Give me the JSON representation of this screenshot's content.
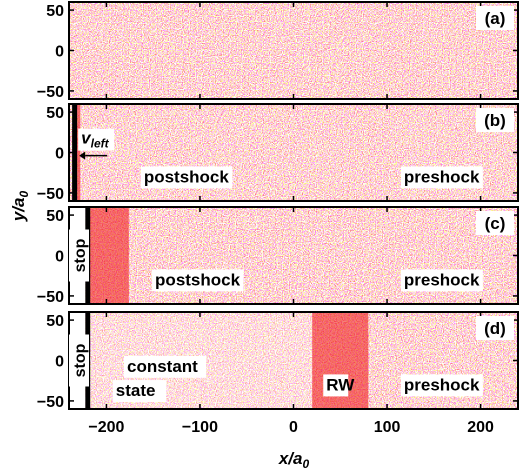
{
  "chart_data": [
    {
      "type": "scatter",
      "panel_label": "(a)",
      "xlim": [
        -240,
        240
      ],
      "ylim": [
        -60,
        60
      ],
      "yticks": [
        50,
        0,
        -50
      ],
      "point_color": "#ee1111",
      "annotations": [],
      "regions": [
        {
          "x_from": -240,
          "x_to": 240,
          "density": "uniform"
        }
      ]
    },
    {
      "type": "scatter",
      "panel_label": "(b)",
      "xlim": [
        -240,
        240
      ],
      "ylim": [
        -60,
        60
      ],
      "yticks": [
        50,
        0,
        -50
      ],
      "point_color": "#ee1111",
      "piston_x": -234,
      "annotations": [
        {
          "id": "vleft",
          "text": "v",
          "subscript": "left",
          "x": -227,
          "y": 11
        },
        {
          "id": "postshock",
          "text": "postshock",
          "x": -160,
          "y": -37
        },
        {
          "id": "preshock",
          "text": "preshock",
          "x": 118,
          "y": -37
        }
      ],
      "regions": [
        {
          "x_from": -234,
          "x_to": -228,
          "density": "high"
        },
        {
          "x_from": -228,
          "x_to": 240,
          "density": "uniform"
        }
      ]
    },
    {
      "type": "scatter",
      "panel_label": "(c)",
      "xlim": [
        -240,
        240
      ],
      "ylim": [
        -60,
        60
      ],
      "yticks": [
        50,
        0,
        -50
      ],
      "point_color": "#ee1111",
      "piston_x": -220,
      "annotations": [
        {
          "id": "stop",
          "text": "stop",
          "x": -230,
          "y": 0,
          "rotated": true
        },
        {
          "id": "postshock",
          "text": "postshock",
          "x": -148,
          "y": -37
        },
        {
          "id": "preshock",
          "text": "preshock",
          "x": 118,
          "y": -37
        }
      ],
      "regions": [
        {
          "x_from": -220,
          "x_to": -176,
          "density": "high"
        },
        {
          "x_from": -176,
          "x_to": 240,
          "density": "uniform"
        }
      ]
    },
    {
      "type": "scatter",
      "panel_label": "(d)",
      "xlim": [
        -240,
        240
      ],
      "ylim": [
        -60,
        60
      ],
      "yticks": [
        50,
        0,
        -50
      ],
      "xticks": [
        -200,
        -100,
        0,
        100,
        200
      ],
      "point_color": "#ee1111",
      "piston_x": -220,
      "annotations": [
        {
          "id": "stop",
          "text": "stop",
          "x": -230,
          "y": 0,
          "rotated": true
        },
        {
          "id": "constant",
          "text": "constant",
          "x": -178,
          "y": -14
        },
        {
          "id": "state",
          "text": "state",
          "x": -190,
          "y": -44
        },
        {
          "id": "rw",
          "text": "RW",
          "x": 35,
          "y": -37
        },
        {
          "id": "preshock",
          "text": "preshock",
          "x": 118,
          "y": -37
        }
      ],
      "regions": [
        {
          "x_from": -220,
          "x_to": 20,
          "density": "low"
        },
        {
          "x_from": 20,
          "x_to": 80,
          "density": "high"
        },
        {
          "x_from": 80,
          "x_to": 240,
          "density": "uniform"
        }
      ]
    }
  ],
  "axes": {
    "xlabel": "x/a",
    "xlabel_sub": "0",
    "ylabel": "y/a",
    "ylabel_sub": "0"
  }
}
